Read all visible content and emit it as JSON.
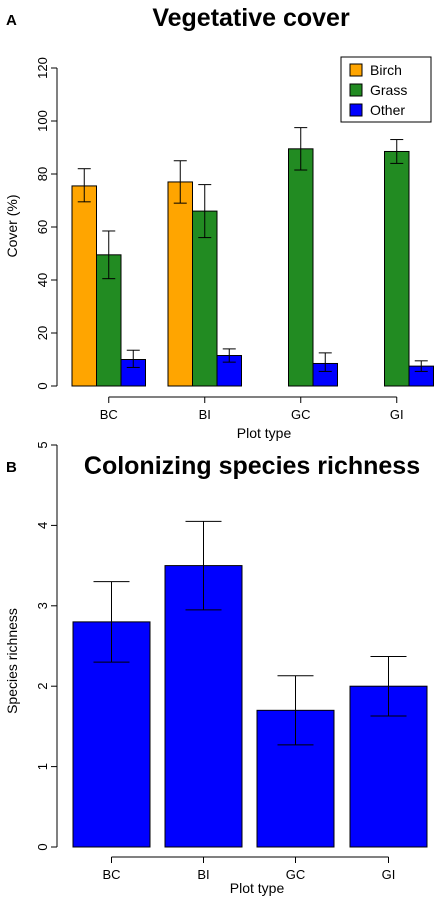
{
  "colors": {
    "birch": "#FFA500",
    "grass": "#228B22",
    "other": "#0000FF",
    "axis": "#000000"
  },
  "chart_data": [
    {
      "panel": "A",
      "type": "bar",
      "title": "Vegetative cover",
      "xlabel": "Plot type",
      "ylabel": "Cover (%)",
      "categories": [
        "BC",
        "BI",
        "GC",
        "GI"
      ],
      "ylim": [
        0,
        120
      ],
      "yticks": [
        0,
        20,
        40,
        60,
        80,
        100,
        120
      ],
      "legend_position": "top-right",
      "series": [
        {
          "name": "Birch",
          "color": "#FFA500",
          "values": [
            75.5,
            77,
            0,
            0
          ],
          "err_low": [
            69.5,
            69,
            0,
            0
          ],
          "err_high": [
            82,
            85,
            0,
            0
          ]
        },
        {
          "name": "Grass",
          "color": "#228B22",
          "values": [
            49.5,
            66,
            89.5,
            88.5
          ],
          "err_low": [
            40.5,
            56,
            81.5,
            84
          ],
          "err_high": [
            58.5,
            76,
            97.5,
            93
          ]
        },
        {
          "name": "Other",
          "color": "#0000FF",
          "values": [
            10,
            11.5,
            8.5,
            7.5
          ],
          "err_low": [
            7,
            9,
            5.5,
            5.5
          ],
          "err_high": [
            13.5,
            14,
            12.5,
            9.5
          ]
        }
      ]
    },
    {
      "panel": "B",
      "type": "bar",
      "title": "Colonizing species richness",
      "xlabel": "Plot type",
      "ylabel": "Species richness",
      "categories": [
        "BC",
        "BI",
        "GC",
        "GI"
      ],
      "ylim": [
        0,
        5
      ],
      "yticks": [
        0,
        1,
        2,
        3,
        4,
        5
      ],
      "series": [
        {
          "color": "#0000FF",
          "values": [
            2.8,
            3.5,
            1.7,
            2.0
          ],
          "err_low": [
            2.3,
            2.95,
            1.27,
            1.63
          ],
          "err_high": [
            3.3,
            4.05,
            2.13,
            2.37
          ]
        }
      ]
    }
  ]
}
